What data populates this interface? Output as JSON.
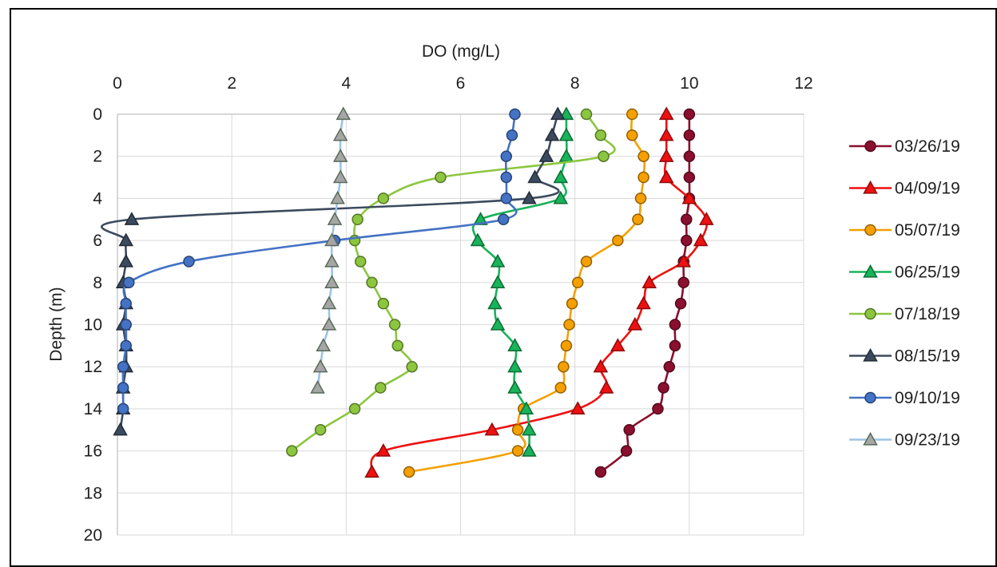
{
  "chart_data": {
    "type": "line",
    "title": "",
    "xlabel": "DO (mg/L)",
    "ylabel": "Depth (m)",
    "xlim": [
      0,
      12
    ],
    "ylim": [
      0,
      20
    ],
    "y_reversed": true,
    "x_axis_position": "top",
    "x_ticks": [
      "0",
      "2",
      "4",
      "6",
      "8",
      "10",
      "12"
    ],
    "y_ticks": [
      "0",
      "2",
      "4",
      "6",
      "8",
      "10",
      "12",
      "14",
      "16",
      "18",
      "20"
    ],
    "grid": true,
    "legend": "right",
    "series": [
      {
        "name": "03/26/19",
        "color": "#8b0f2e",
        "marker": "circle",
        "filled": true,
        "x": [
          10.0,
          10.0,
          10.0,
          10.0,
          10.0,
          9.95,
          9.95,
          9.9,
          9.9,
          9.85,
          9.75,
          9.75,
          9.65,
          9.55,
          9.45,
          8.95,
          8.9,
          8.45
        ],
        "y": [
          0,
          1,
          2,
          3,
          4,
          5,
          6,
          7,
          8,
          9,
          10,
          11,
          12,
          13,
          14,
          15,
          16,
          17
        ]
      },
      {
        "name": "04/09/19",
        "color": "#ee1111",
        "marker": "triangle",
        "filled": true,
        "x": [
          9.6,
          9.6,
          9.6,
          9.6,
          10.0,
          10.3,
          10.2,
          9.9,
          9.3,
          9.2,
          9.05,
          8.75,
          8.45,
          8.55,
          8.05,
          6.55,
          4.65,
          4.45
        ],
        "y": [
          0,
          1,
          2,
          3,
          4,
          5,
          6,
          7,
          8,
          9,
          10,
          11,
          12,
          13,
          14,
          15,
          16,
          17
        ]
      },
      {
        "name": "05/07/19",
        "color": "#f5a000",
        "marker": "circle",
        "filled": true,
        "x": [
          9.0,
          9.0,
          9.2,
          9.2,
          9.15,
          9.1,
          8.75,
          8.2,
          8.05,
          7.95,
          7.9,
          7.85,
          7.8,
          7.75,
          7.1,
          7.0,
          7.0,
          5.1
        ],
        "y": [
          0,
          1,
          2,
          3,
          4,
          5,
          6,
          7,
          8,
          9,
          10,
          11,
          12,
          13,
          14,
          15,
          16,
          17
        ]
      },
      {
        "name": "06/25/19",
        "color": "#18b35a",
        "marker": "triangle",
        "filled": true,
        "x": [
          7.85,
          7.85,
          7.85,
          7.75,
          7.75,
          6.35,
          6.3,
          6.65,
          6.65,
          6.6,
          6.65,
          6.95,
          6.95,
          6.95,
          7.15,
          7.2,
          7.2
        ],
        "y": [
          0,
          1,
          2,
          3,
          4,
          5,
          6,
          7,
          8,
          9,
          10,
          11,
          12,
          13,
          14,
          15,
          16
        ]
      },
      {
        "name": "07/18/19",
        "color": "#8cc63f",
        "marker": "circle",
        "filled": true,
        "x": [
          8.2,
          8.45,
          8.5,
          5.65,
          4.65,
          4.2,
          4.15,
          4.25,
          4.45,
          4.65,
          4.85,
          4.9,
          5.15,
          4.6,
          4.15,
          3.55,
          3.05
        ],
        "y": [
          0,
          1,
          2,
          3,
          4,
          5,
          6,
          7,
          8,
          9,
          10,
          11,
          12,
          13,
          14,
          15,
          16
        ]
      },
      {
        "name": "08/15/19",
        "color": "#3b4a5e",
        "marker": "triangle",
        "filled": true,
        "x": [
          7.7,
          7.6,
          7.5,
          7.3,
          7.2,
          0.25,
          0.15,
          0.15,
          0.1,
          0.15,
          0.1,
          0.15,
          0.15,
          0.1,
          0.1,
          0.05
        ],
        "y": [
          0,
          1,
          2,
          3,
          4,
          5,
          6,
          7,
          8,
          9,
          10,
          11,
          12,
          13,
          14,
          15
        ]
      },
      {
        "name": "09/10/19",
        "color": "#4472c4",
        "marker": "circle",
        "filled": true,
        "x": [
          6.95,
          6.9,
          6.8,
          6.8,
          6.8,
          6.75,
          3.8,
          1.25,
          0.2,
          0.15,
          0.15,
          0.15,
          0.1,
          0.1,
          0.1
        ],
        "y": [
          0,
          1,
          2,
          3,
          4,
          5,
          6,
          7,
          8,
          9,
          10,
          11,
          12,
          13,
          14
        ]
      },
      {
        "name": "09/23/19",
        "color": "#9dc3e6",
        "marker": "triangle",
        "filled": false,
        "x": [
          3.95,
          3.9,
          3.9,
          3.9,
          3.85,
          3.8,
          3.75,
          3.75,
          3.75,
          3.7,
          3.7,
          3.6,
          3.55,
          3.5
        ],
        "y": [
          0,
          1,
          2,
          3,
          4,
          5,
          6,
          7,
          8,
          9,
          10,
          11,
          12,
          13
        ]
      }
    ]
  }
}
